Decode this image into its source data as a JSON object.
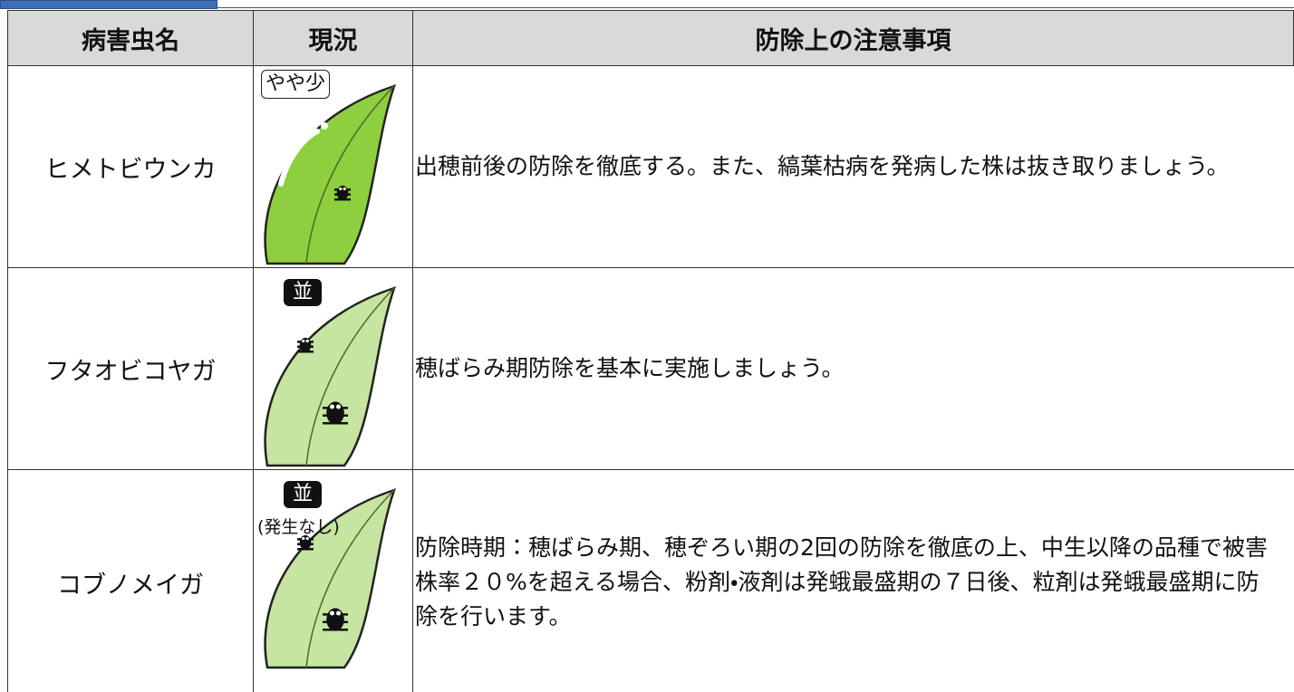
{
  "table": {
    "header": [
      "病害虫名",
      "現況",
      "防除上の注意事項"
    ],
    "rows": [
      {
        "name": "ヒメトビウンカ",
        "status": "やや少",
        "note": "出穂前後の防除を徹底する。また、縞葉枯病を発病した株は抜き取りましょう。"
      },
      {
        "name": "フタオビコヤガ",
        "status": "並",
        "note": "穂ばらみ期防除を基本に実施しましょう。"
      },
      {
        "name": "コブノメイガ",
        "status": "並",
        "remark": "(発生なし)",
        "note": "防除時期：穂ばらみ期、穂ぞろい期の2回の防除を徹底の上、中生以降の品種で被害株率２０%を超える場合、粉剤・液剤は発蛾最盛期の７日後、粒剤は発蛾最盛期に防除を行います。"
      }
    ]
  }
}
